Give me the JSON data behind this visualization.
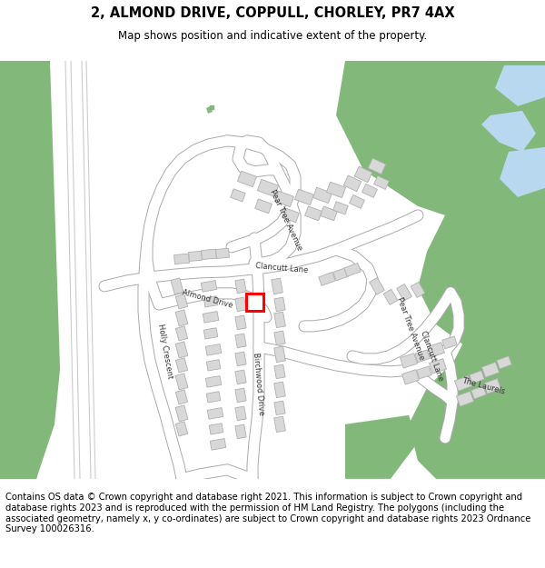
{
  "title": "2, ALMOND DRIVE, COPPULL, CHORLEY, PR7 4AX",
  "subtitle": "Map shows position and indicative extent of the property.",
  "footer": "Contains OS data © Crown copyright and database right 2021. This information is subject to Crown copyright and database rights 2023 and is reproduced with the permission of HM Land Registry. The polygons (including the associated geometry, namely x, y co-ordinates) are subject to Crown copyright and database rights 2023 Ordnance Survey 100026316.",
  "bg_color": "#ffffff",
  "map_bg": "#ffffff",
  "green_color": "#82b87a",
  "building_color": "#d8d8d8",
  "building_edge": "#b0b0b0",
  "road_color": "#ffffff",
  "road_edge": "#aaaaaa",
  "highlight_color": "#ff0000",
  "water_color": "#b8d8f0",
  "title_fontsize": 10.5,
  "subtitle_fontsize": 8.5,
  "footer_fontsize": 7.2
}
